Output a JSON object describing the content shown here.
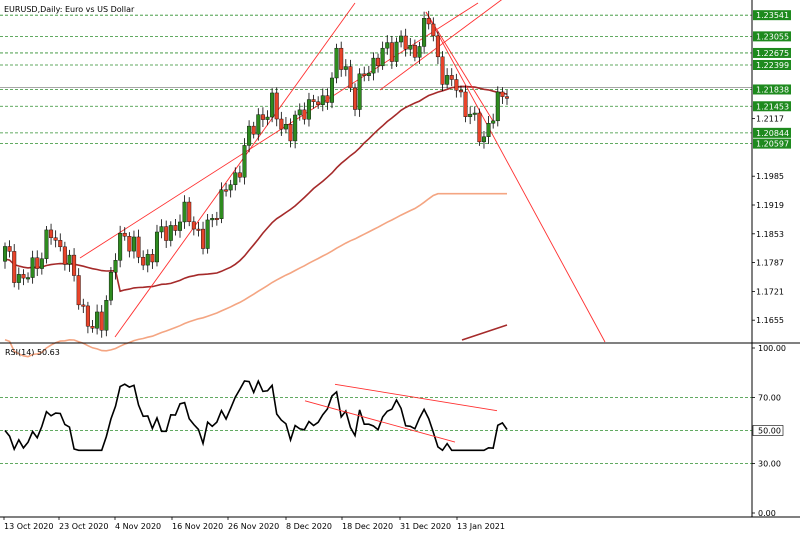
{
  "chart_data": {
    "type": "candlestick",
    "title": "EURUSD,Daily: Euro vs US Dollar",
    "colors": {
      "up": "#2e8b1f",
      "down": "#e8442a",
      "ma_dark": "#a52a2a",
      "ma_light": "#f4a582",
      "channel": "#ff3030",
      "hline": "#2f8f2f",
      "rsi_line": "#000000",
      "box_highlight": "#1e8a1e"
    },
    "price_axis": {
      "ylim": [
        1.1605,
        1.2382
      ],
      "ticks": [
        {
          "value": 1.23541,
          "label": "1.23541",
          "box": true
        },
        {
          "value": 1.23055,
          "label": "1.23055",
          "box": true
        },
        {
          "value": 1.22675,
          "label": "1.22675",
          "box": true
        },
        {
          "value": 1.22399,
          "label": "1.22399",
          "box": true
        },
        {
          "value": 1.21838,
          "label": "1.21838",
          "box": true
        },
        {
          "value": 1.21453,
          "label": "1.21453",
          "box": true
        },
        {
          "value": 1.2117,
          "label": "1.2117",
          "box": false
        },
        {
          "value": 1.20844,
          "label": "1.20844",
          "box": true
        },
        {
          "value": 1.20597,
          "label": "1.20597",
          "box": true
        },
        {
          "value": 1.1985,
          "label": "1.1985",
          "box": false
        },
        {
          "value": 1.1919,
          "label": "1.1919",
          "box": false
        },
        {
          "value": 1.1853,
          "label": "1.1853",
          "box": false
        },
        {
          "value": 1.1787,
          "label": "1.1787",
          "box": false
        },
        {
          "value": 1.1721,
          "label": "1.1721",
          "box": false
        },
        {
          "value": 1.1655,
          "label": "1.1655",
          "box": false
        }
      ],
      "hlines": [
        1.23541,
        1.23055,
        1.22675,
        1.22399,
        1.21838,
        1.21453,
        1.20844,
        1.20597
      ]
    },
    "x_labels": [
      "13 Oct 2020",
      "23 Oct 2020",
      "4 Nov 2020",
      "16 Nov 2020",
      "26 Nov 2020",
      "8 Dec 2020",
      "18 Dec 2020",
      "31 Dec 2020",
      "13 Jan 2021"
    ],
    "rsi": {
      "label": "RSI(14) 50.63",
      "period": 14,
      "value": 50.63,
      "ylim": [
        0,
        100
      ],
      "ticks": [
        "100.00",
        "70.00",
        "50.00",
        "30.00",
        "0.00"
      ],
      "levels": [
        70,
        50,
        30
      ]
    }
  }
}
